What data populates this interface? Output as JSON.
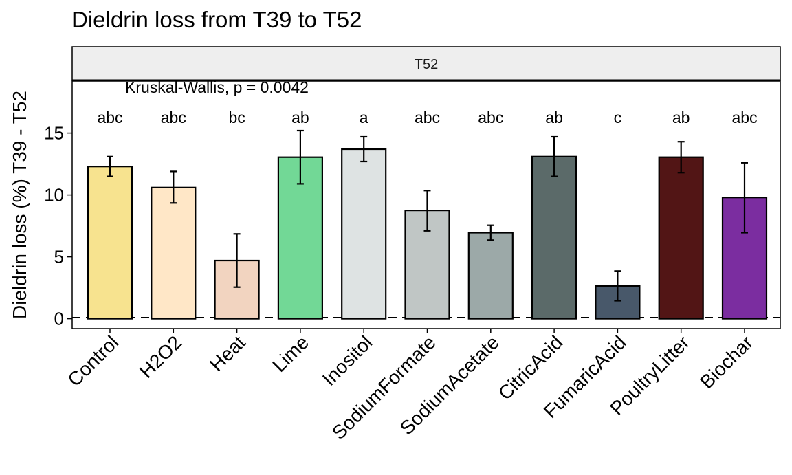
{
  "chart_data": {
    "type": "bar",
    "title": "Dieldrin loss from T39 to T52",
    "facet_label": "T52",
    "annotation": "Kruskal-Wallis, p = 0.0042",
    "ylabel": "Dieldrin loss (%) T39 - T52",
    "xlabel": "",
    "ylim": [
      -0.8,
      19.2
    ],
    "yticks": [
      0,
      5,
      10,
      15
    ],
    "grid": false,
    "legend": "none",
    "reference_line": 0,
    "categories": [
      "Control",
      "H2O2",
      "Heat",
      "Lime",
      "Inositol",
      "SodiumFormate",
      "SodiumAcetate",
      "CitricAcid",
      "FumaricAcid",
      "PoultryLitter",
      "Biochar"
    ],
    "values": [
      12.3,
      10.6,
      4.7,
      13.05,
      13.7,
      8.75,
      6.95,
      13.1,
      2.65,
      13.05,
      9.8
    ],
    "error_low": [
      11.5,
      9.35,
      2.55,
      10.9,
      12.7,
      7.1,
      6.35,
      11.5,
      1.45,
      11.8,
      6.95
    ],
    "error_high": [
      13.1,
      11.9,
      6.85,
      15.2,
      14.7,
      10.35,
      7.55,
      14.7,
      3.85,
      14.3,
      12.6
    ],
    "group_letters": [
      "abc",
      "abc",
      "bc",
      "ab",
      "a",
      "abc",
      "abc",
      "ab",
      "c",
      "ab",
      "abc"
    ],
    "colors": [
      "#F7E38F",
      "#FFE7C7",
      "#F2D4C0",
      "#72D896",
      "#DEE3E3",
      "#C0C6C5",
      "#9CA9A8",
      "#5B6A69",
      "#48586A",
      "#521515",
      "#7B2DA0"
    ]
  }
}
